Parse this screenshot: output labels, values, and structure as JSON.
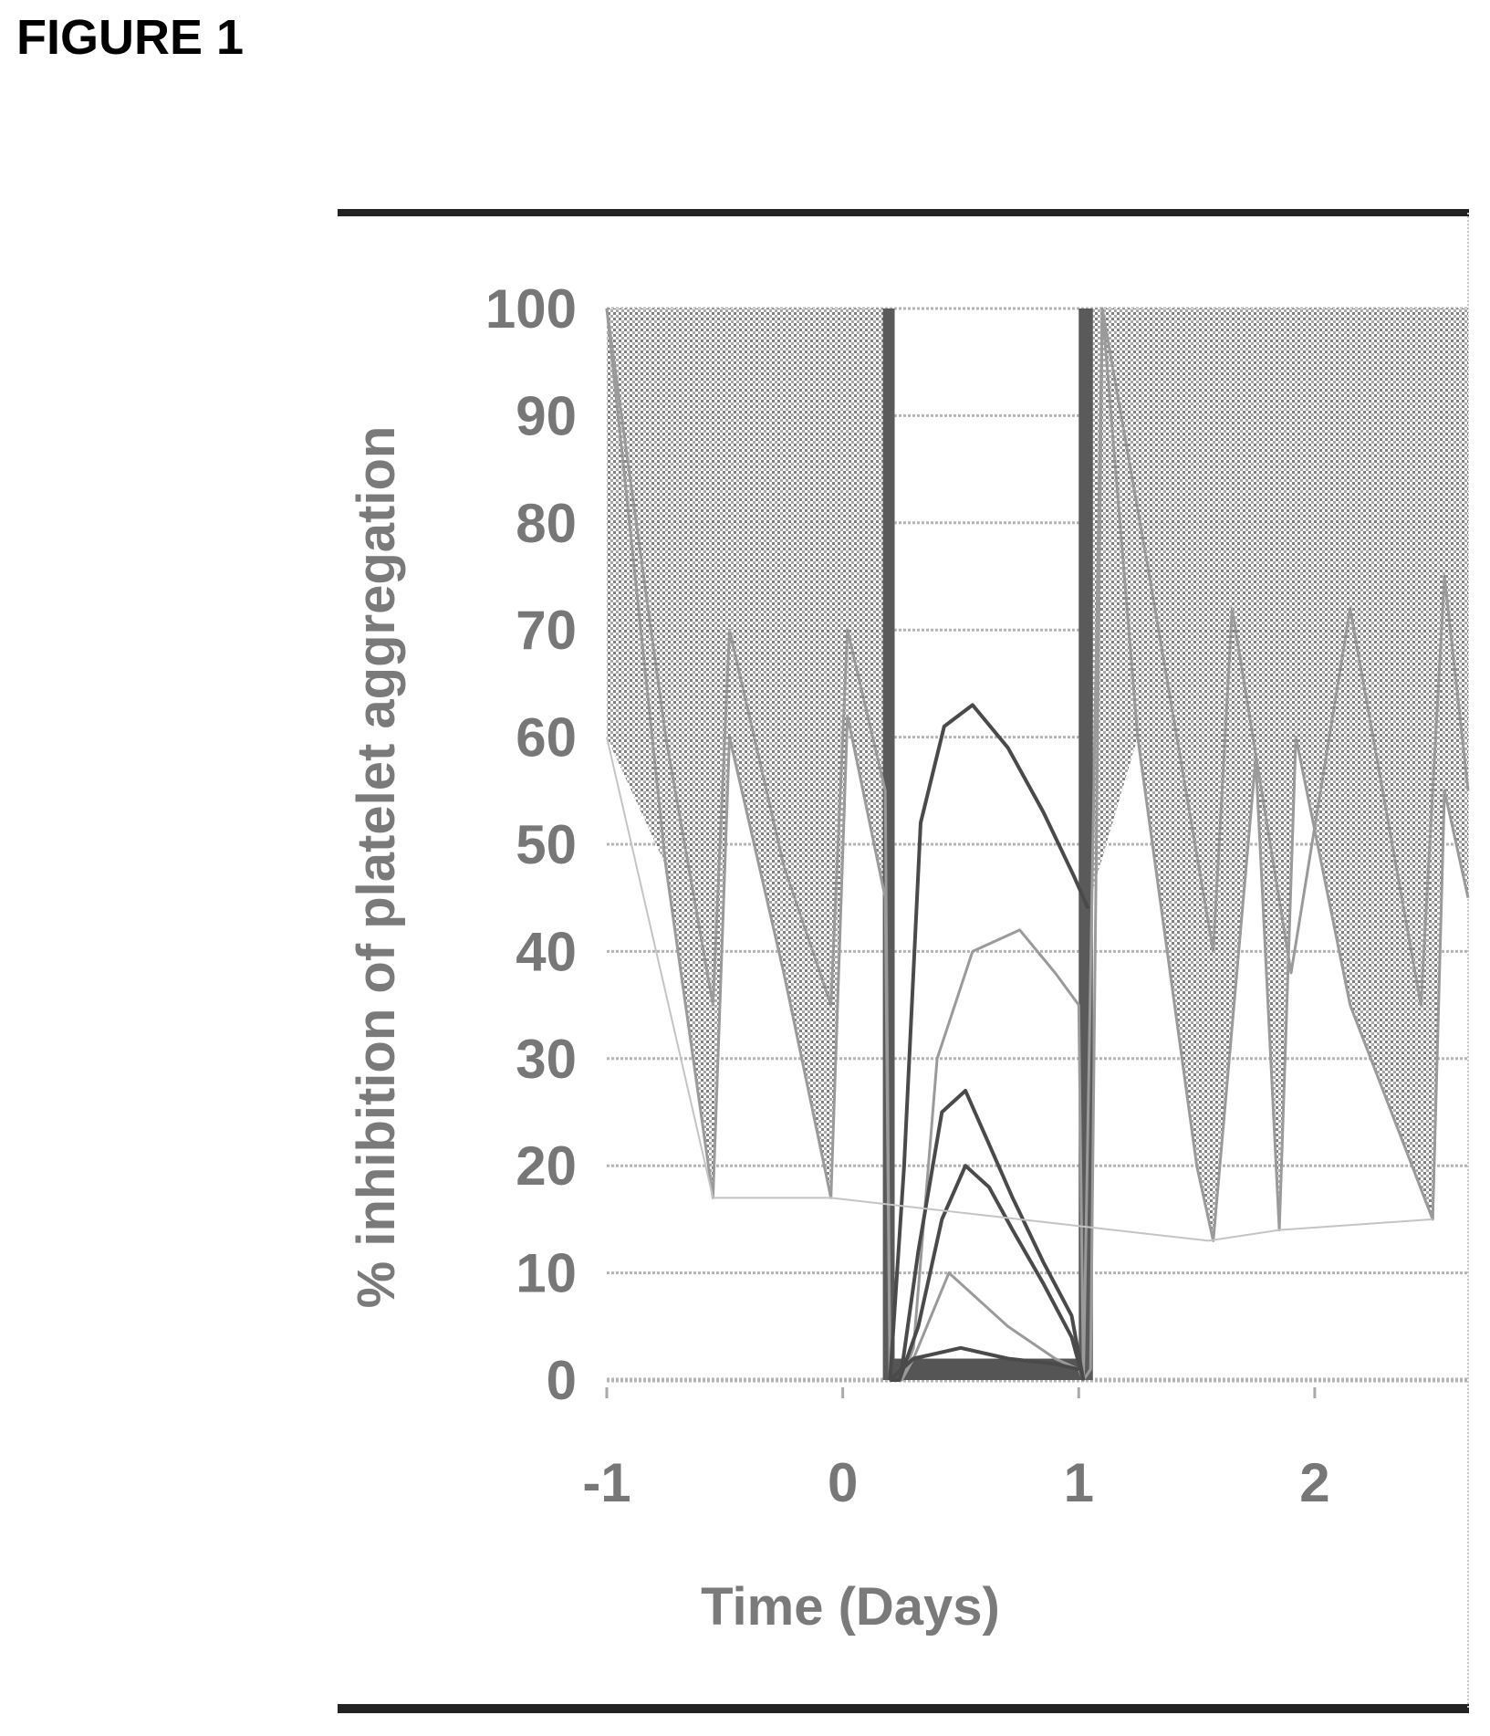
{
  "figure_label": "FIGURE 1",
  "colors": {
    "line": "#4a4a4a",
    "grid": "#b0b0b0",
    "text": "#777777",
    "frame": "#222222"
  },
  "chart_data": {
    "type": "line",
    "title": "",
    "xlabel": "Time (Days)",
    "ylabel": "% inhibition of platelet aggregation",
    "xlim": [
      -1.0,
      2.65
    ],
    "ylim": [
      0,
      100
    ],
    "x_ticks": [
      "-1",
      "0",
      "1",
      "2"
    ],
    "x_tick_values": [
      -1,
      0,
      1,
      2
    ],
    "y_ticks": [
      "0",
      "10",
      "20",
      "30",
      "40",
      "50",
      "60",
      "70",
      "80",
      "90",
      "100"
    ],
    "y_tick_values": [
      0,
      10,
      20,
      30,
      40,
      50,
      60,
      70,
      80,
      90,
      100
    ],
    "grid": "horizontal",
    "legend": "none",
    "series_envelope": {
      "lower_trough_values": [
        {
          "x": -0.55,
          "y": 17
        },
        {
          "x": -0.05,
          "y": 17
        },
        {
          "x": 1.55,
          "y": 13
        },
        {
          "x": 1.85,
          "y": 14
        },
        {
          "x": 2.5,
          "y": 15
        }
      ],
      "upper_value": 100
    },
    "series": [
      {
        "x": [
          -1.0,
          -0.75,
          -0.55,
          -0.48,
          -0.25,
          -0.05,
          0.02,
          0.18,
          0.2,
          0.25,
          0.3,
          0.4,
          0.55,
          0.75,
          0.9,
          1.0,
          1.02,
          1.05,
          1.1,
          1.25,
          1.5,
          1.57,
          1.75,
          1.85,
          1.92,
          2.15,
          2.5,
          2.55,
          2.65
        ],
        "y": [
          100,
          48,
          17,
          60,
          38,
          17,
          62,
          45,
          0,
          0,
          3,
          30,
          40,
          42,
          38,
          35,
          0,
          1,
          100,
          60,
          20,
          13,
          58,
          14,
          60,
          35,
          15,
          55,
          45
        ]
      },
      {
        "x": [
          -1.0,
          -0.75,
          -0.55,
          -0.48,
          -0.25,
          -0.05,
          0.02,
          0.18,
          0.2,
          0.25,
          0.3,
          0.45,
          0.7,
          0.9,
          1.0,
          1.02,
          1.1,
          1.3,
          1.57,
          1.65,
          1.9,
          2.15,
          2.45,
          2.55,
          2.65
        ],
        "y": [
          100,
          60,
          35,
          70,
          48,
          35,
          70,
          55,
          0,
          0,
          2,
          10,
          5,
          2,
          1,
          0,
          100,
          75,
          40,
          72,
          38,
          72,
          35,
          75,
          55
        ]
      },
      {
        "x": [
          0.2,
          0.25,
          0.32,
          0.42,
          0.52,
          0.62,
          0.72,
          0.85,
          0.97,
          1.02
        ],
        "y": [
          0,
          1,
          12,
          25,
          27,
          22,
          17,
          11,
          6,
          0
        ]
      },
      {
        "x": [
          0.2,
          0.24,
          0.32,
          0.42,
          0.52,
          0.62,
          0.72,
          0.85,
          0.97,
          1.02
        ],
        "y": [
          0,
          0,
          5,
          15,
          20,
          18,
          14,
          9,
          4,
          0
        ]
      },
      {
        "x": [
          0.2,
          0.26,
          0.33,
          0.43,
          0.55,
          0.7,
          0.85,
          0.98,
          1.04
        ],
        "y": [
          0,
          20,
          52,
          61,
          63,
          59,
          53,
          47,
          44
        ]
      },
      {
        "x": [
          0.2,
          0.3,
          0.5,
          0.7,
          0.9,
          1.0
        ],
        "y": [
          0,
          2,
          3,
          2,
          1.5,
          1
        ]
      }
    ]
  }
}
